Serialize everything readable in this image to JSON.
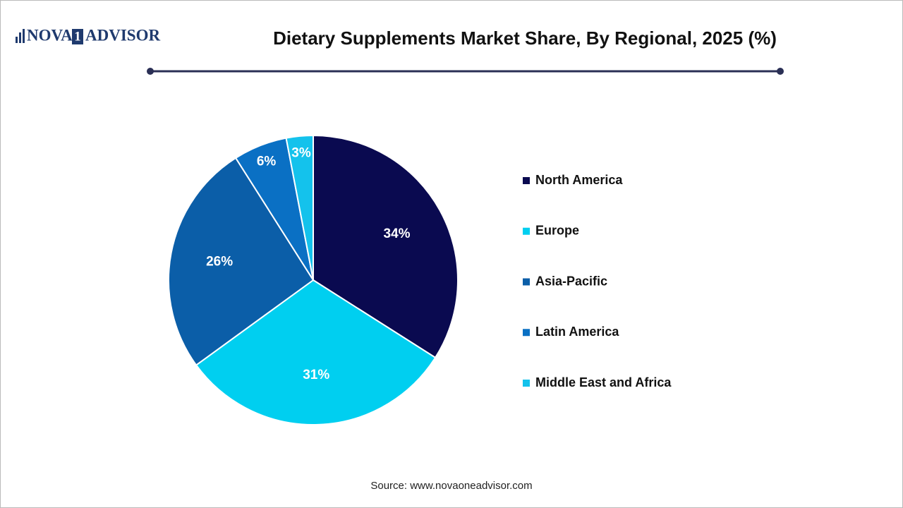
{
  "logo": {
    "left": "NOVA",
    "mark": "1",
    "right": "ADVISOR"
  },
  "chart_data": {
    "type": "pie",
    "title": "Dietary Supplements Market Share, By Regional, 2025 (%)",
    "categories": [
      "North America",
      "Europe",
      "Asia-Pacific",
      "Latin America",
      "Middle East and Africa"
    ],
    "values": [
      34,
      31,
      26,
      6,
      3
    ],
    "value_labels": [
      "34%",
      "31%",
      "26%",
      "6%",
      "3%"
    ],
    "colors": [
      "#0a0a50",
      "#00cff0",
      "#0b5ea8",
      "#0a70c4",
      "#14c2ec"
    ],
    "legend": "right"
  },
  "source": "Source: www.novaoneadvisor.com"
}
